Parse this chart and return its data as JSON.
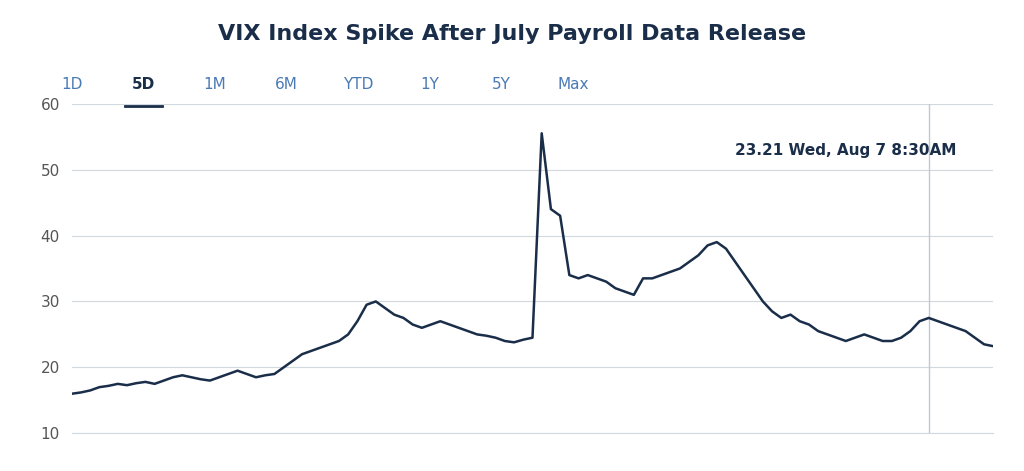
{
  "title": "VIX Index Spike After July Payroll Data Release",
  "nav_items": [
    "1D",
    "5D",
    "1M",
    "6M",
    "YTD",
    "1Y",
    "5Y",
    "Max"
  ],
  "nav_active": "5D",
  "annotation_text": "23.21 Wed, Aug 7 8:30AM",
  "ylim": [
    10,
    60
  ],
  "yticks": [
    10,
    20,
    30,
    40,
    50,
    60
  ],
  "line_color": "#1a2e4a",
  "line_width": 1.8,
  "background_color": "#ffffff",
  "grid_color": "#d0d8e0",
  "title_color": "#1a2e4a",
  "nav_color": "#4a7ab5",
  "nav_active_color": "#1a2e4a",
  "annotation_color": "#1a2e4a",
  "vline_color": "#c0c8d0",
  "vline_x": 0.93,
  "y_values": [
    16.0,
    16.2,
    16.5,
    17.0,
    17.2,
    17.5,
    17.3,
    17.6,
    17.8,
    17.5,
    18.0,
    18.5,
    18.8,
    18.5,
    18.2,
    18.0,
    18.5,
    19.0,
    19.5,
    19.0,
    18.5,
    18.8,
    19.0,
    20.0,
    21.0,
    22.0,
    22.5,
    23.0,
    23.5,
    24.0,
    25.0,
    27.0,
    29.5,
    30.0,
    29.0,
    28.0,
    27.5,
    26.5,
    26.0,
    26.5,
    27.0,
    26.5,
    26.0,
    25.5,
    25.0,
    24.8,
    24.5,
    24.0,
    23.8,
    24.2,
    24.5,
    55.5,
    44.0,
    43.0,
    34.0,
    33.5,
    34.0,
    33.5,
    33.0,
    32.0,
    31.5,
    31.0,
    33.5,
    33.5,
    34.0,
    34.5,
    35.0,
    36.0,
    37.0,
    38.5,
    39.0,
    38.0,
    36.0,
    34.0,
    32.0,
    30.0,
    28.5,
    27.5,
    28.0,
    27.0,
    26.5,
    25.5,
    25.0,
    24.5,
    24.0,
    24.5,
    25.0,
    24.5,
    24.0,
    24.0,
    24.5,
    25.5,
    27.0,
    27.5,
    27.0,
    26.5,
    26.0,
    25.5,
    24.5,
    23.5,
    23.21
  ]
}
